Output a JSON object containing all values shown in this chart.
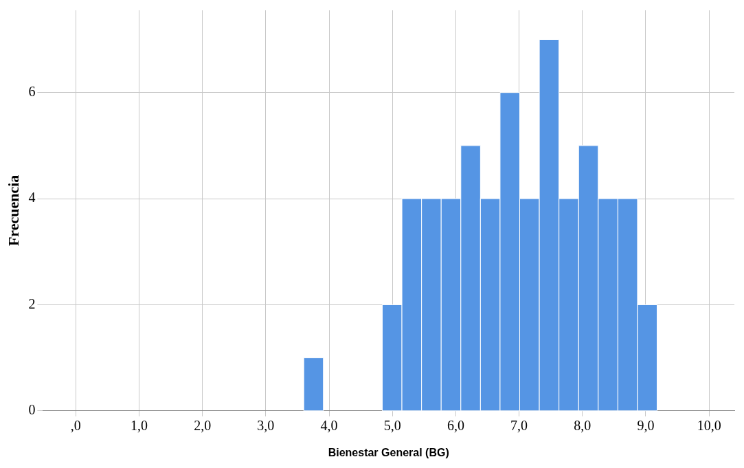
{
  "chart_data": {
    "type": "histogram",
    "xlabel": "Bienestar General (BG)",
    "ylabel": "Frecuencia",
    "color": "#5595e4",
    "bins": [
      3.6,
      3.91,
      4.22,
      4.53,
      4.84,
      5.15,
      5.46,
      5.77,
      6.08,
      6.39,
      6.7,
      7.01,
      7.32,
      7.63,
      7.94,
      8.25,
      8.56,
      8.87,
      9.18
    ],
    "values": [
      1,
      0,
      0,
      0,
      2,
      4,
      4,
      4,
      5,
      4,
      6,
      4,
      7,
      4,
      5,
      4,
      4,
      2
    ],
    "xlim": [
      -0.52,
      10.4
    ],
    "ylim": [
      0,
      7.55
    ],
    "xticks": [
      {
        "value": 0,
        "label": ",0"
      },
      {
        "value": 1,
        "label": "1,0"
      },
      {
        "value": 2,
        "label": "2,0"
      },
      {
        "value": 3,
        "label": "3,0"
      },
      {
        "value": 4,
        "label": "4,0"
      },
      {
        "value": 5,
        "label": "5,0"
      },
      {
        "value": 6,
        "label": "6,0"
      },
      {
        "value": 7,
        "label": "7,0"
      },
      {
        "value": 8,
        "label": "8,0"
      },
      {
        "value": 9,
        "label": "9,0"
      },
      {
        "value": 10,
        "label": "10,0"
      }
    ],
    "yticks": [
      0,
      2,
      4,
      6
    ],
    "grid": true
  }
}
